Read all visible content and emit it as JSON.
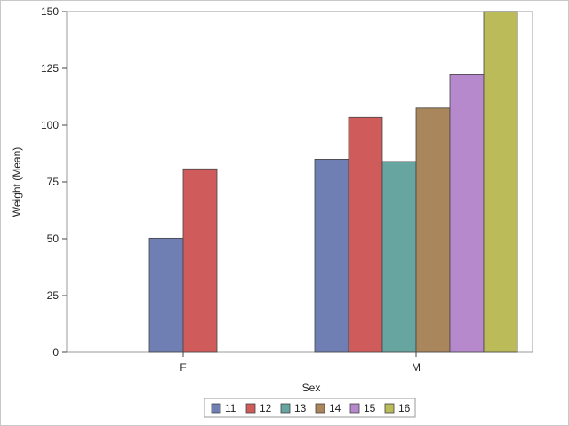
{
  "chart_data": {
    "type": "bar",
    "xlabel": "Sex",
    "ylabel": "Weight (Mean)",
    "categories": [
      "F",
      "M"
    ],
    "ylim": [
      0,
      150
    ],
    "yticks": [
      0,
      25,
      50,
      75,
      100,
      125,
      150
    ],
    "grid": false,
    "legend_position": "bottom",
    "series": [
      {
        "name": "11",
        "color": "#6f7eb3",
        "values": [
          50.25,
          85.0
        ]
      },
      {
        "name": "12",
        "color": "#d05b5b",
        "values": [
          80.75,
          103.4
        ]
      },
      {
        "name": "13",
        "color": "#66a5a0",
        "values": [
          null,
          84.0
        ]
      },
      {
        "name": "14",
        "color": "#a9865b",
        "values": [
          null,
          107.5
        ]
      },
      {
        "name": "15",
        "color": "#b689cd",
        "values": [
          null,
          122.5
        ]
      },
      {
        "name": "16",
        "color": "#bbbb5a",
        "values": [
          null,
          150.0
        ]
      }
    ]
  }
}
